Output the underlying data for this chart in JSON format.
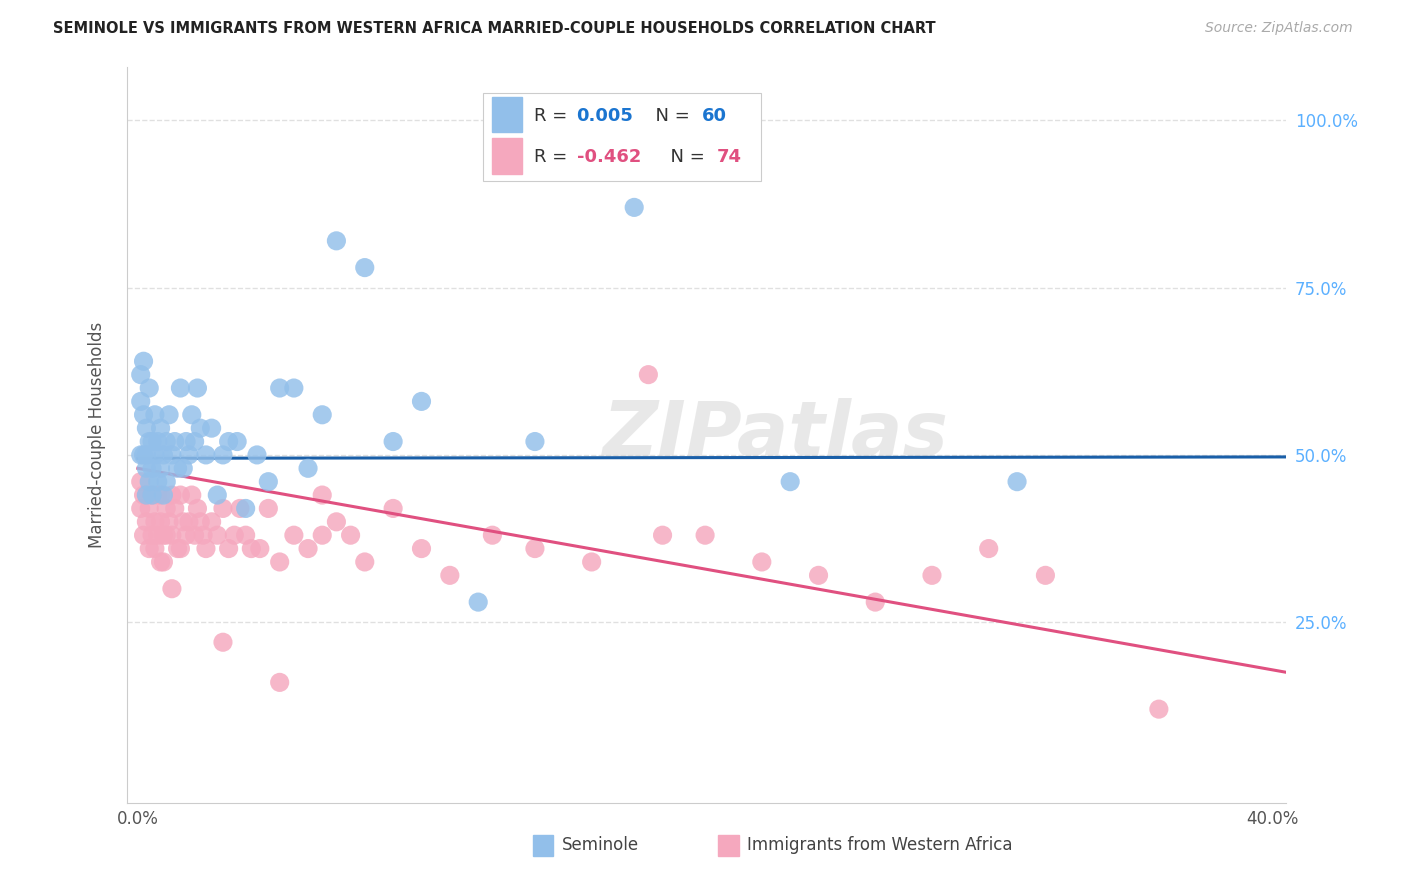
{
  "title": "SEMINOLE VS IMMIGRANTS FROM WESTERN AFRICA MARRIED-COUPLE HOUSEHOLDS CORRELATION CHART",
  "source": "Source: ZipAtlas.com",
  "ylabel": "Married-couple Households",
  "legend_label_blue": "Seminole",
  "legend_label_pink": "Immigrants from Western Africa",
  "R_blue": 0.005,
  "N_blue": 60,
  "R_pink": -0.462,
  "N_pink": 74,
  "xlim": [
    -0.004,
    0.405
  ],
  "ylim": [
    -0.02,
    1.08
  ],
  "color_blue": "#92BFEA",
  "color_pink": "#F5A8BE",
  "line_color_blue": "#1A5FA8",
  "line_color_pink": "#E05080",
  "right_axis_color": "#5BB0FF",
  "grid_color": "#DDDDDD",
  "background_color": "#FFFFFF",
  "watermark": "ZIPatlas",
  "blue_line_x": [
    0.0,
    0.405
  ],
  "blue_line_y": [
    0.495,
    0.497
  ],
  "pink_line_x": [
    0.0,
    0.405
  ],
  "pink_line_y": [
    0.48,
    0.175
  ],
  "blue_x": [
    0.001,
    0.001,
    0.001,
    0.002,
    0.002,
    0.002,
    0.003,
    0.003,
    0.003,
    0.003,
    0.004,
    0.004,
    0.004,
    0.005,
    0.005,
    0.005,
    0.006,
    0.006,
    0.007,
    0.007,
    0.008,
    0.008,
    0.009,
    0.009,
    0.01,
    0.01,
    0.011,
    0.012,
    0.013,
    0.014,
    0.015,
    0.016,
    0.017,
    0.018,
    0.019,
    0.02,
    0.021,
    0.022,
    0.024,
    0.026,
    0.028,
    0.03,
    0.032,
    0.035,
    0.038,
    0.042,
    0.046,
    0.05,
    0.055,
    0.06,
    0.065,
    0.07,
    0.08,
    0.09,
    0.1,
    0.12,
    0.14,
    0.175,
    0.23,
    0.31
  ],
  "blue_y": [
    0.62,
    0.58,
    0.5,
    0.64,
    0.56,
    0.5,
    0.54,
    0.5,
    0.48,
    0.44,
    0.6,
    0.52,
    0.46,
    0.52,
    0.48,
    0.44,
    0.56,
    0.5,
    0.52,
    0.46,
    0.54,
    0.48,
    0.5,
    0.44,
    0.52,
    0.46,
    0.56,
    0.5,
    0.52,
    0.48,
    0.6,
    0.48,
    0.52,
    0.5,
    0.56,
    0.52,
    0.6,
    0.54,
    0.5,
    0.54,
    0.44,
    0.5,
    0.52,
    0.52,
    0.42,
    0.5,
    0.46,
    0.6,
    0.6,
    0.48,
    0.56,
    0.82,
    0.78,
    0.52,
    0.58,
    0.28,
    0.52,
    0.87,
    0.46,
    0.46
  ],
  "pink_x": [
    0.001,
    0.001,
    0.002,
    0.002,
    0.003,
    0.003,
    0.004,
    0.004,
    0.005,
    0.005,
    0.006,
    0.006,
    0.007,
    0.007,
    0.008,
    0.008,
    0.009,
    0.009,
    0.01,
    0.01,
    0.011,
    0.012,
    0.012,
    0.013,
    0.014,
    0.015,
    0.016,
    0.017,
    0.018,
    0.019,
    0.02,
    0.021,
    0.022,
    0.023,
    0.024,
    0.026,
    0.028,
    0.03,
    0.032,
    0.034,
    0.036,
    0.038,
    0.04,
    0.043,
    0.046,
    0.05,
    0.055,
    0.06,
    0.065,
    0.07,
    0.075,
    0.08,
    0.09,
    0.1,
    0.11,
    0.125,
    0.14,
    0.16,
    0.18,
    0.2,
    0.22,
    0.24,
    0.26,
    0.28,
    0.3,
    0.32,
    0.185,
    0.03,
    0.05,
    0.065,
    0.008,
    0.012,
    0.015,
    0.36
  ],
  "pink_y": [
    0.46,
    0.42,
    0.44,
    0.38,
    0.44,
    0.4,
    0.42,
    0.36,
    0.44,
    0.38,
    0.4,
    0.36,
    0.44,
    0.38,
    0.44,
    0.4,
    0.38,
    0.34,
    0.42,
    0.38,
    0.4,
    0.44,
    0.38,
    0.42,
    0.36,
    0.44,
    0.4,
    0.38,
    0.4,
    0.44,
    0.38,
    0.42,
    0.4,
    0.38,
    0.36,
    0.4,
    0.38,
    0.42,
    0.36,
    0.38,
    0.42,
    0.38,
    0.36,
    0.36,
    0.42,
    0.34,
    0.38,
    0.36,
    0.44,
    0.4,
    0.38,
    0.34,
    0.42,
    0.36,
    0.32,
    0.38,
    0.36,
    0.34,
    0.62,
    0.38,
    0.34,
    0.32,
    0.28,
    0.32,
    0.36,
    0.32,
    0.38,
    0.22,
    0.16,
    0.38,
    0.34,
    0.3,
    0.36,
    0.12
  ]
}
